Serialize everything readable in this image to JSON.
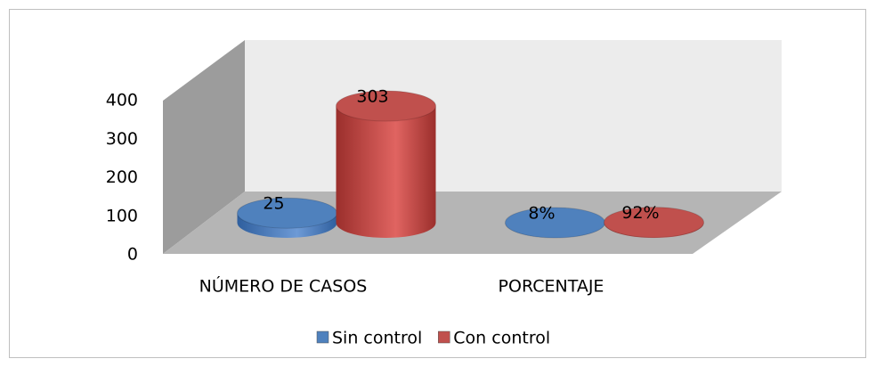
{
  "chart_data": {
    "type": "bar3d",
    "categories": [
      "NÚMERO DE CASOS",
      "PORCENTAJE"
    ],
    "series": [
      {
        "name": "Sin control",
        "color": "#4f81bd",
        "values": [
          25,
          0.08
        ],
        "value_labels": [
          "25",
          "8%"
        ]
      },
      {
        "name": "Con control",
        "color": "#c0504d",
        "values": [
          303,
          0.92
        ],
        "value_labels": [
          "303",
          "92%"
        ]
      }
    ],
    "ylim": [
      0,
      400
    ],
    "yticks": [
      0,
      100,
      200,
      300,
      400
    ],
    "legend": "bottom"
  }
}
